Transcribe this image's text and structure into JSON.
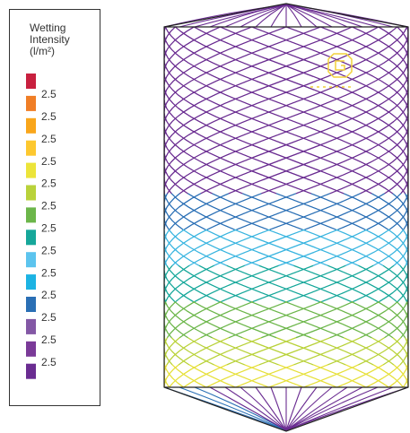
{
  "legend": {
    "title_lines": [
      "Wetting",
      "Intensity",
      "(l/m²)"
    ],
    "items": [
      {
        "color": "#c8203f",
        "label": null
      },
      {
        "color": "#f07e26",
        "label": "2.5"
      },
      {
        "color": "#f9a61b",
        "label": "2.5"
      },
      {
        "color": "#fdc82f",
        "label": "2.5"
      },
      {
        "color": "#ece43a",
        "label": "2.5"
      },
      {
        "color": "#b9d23a",
        "label": "2.5"
      },
      {
        "color": "#6cb64a",
        "label": "2.5"
      },
      {
        "color": "#16a79a",
        "label": "2.5"
      },
      {
        "color": "#5cc4ee",
        "label": "2.5"
      },
      {
        "color": "#1cb3e3",
        "label": "2.5"
      },
      {
        "color": "#2a6fb5",
        "label": "2.5"
      },
      {
        "color": "#8358a5",
        "label": "2.5"
      },
      {
        "color": "#7a3a98",
        "label": "2.5"
      },
      {
        "color": "#6a2c91",
        "label": "2.5"
      }
    ]
  }
}
